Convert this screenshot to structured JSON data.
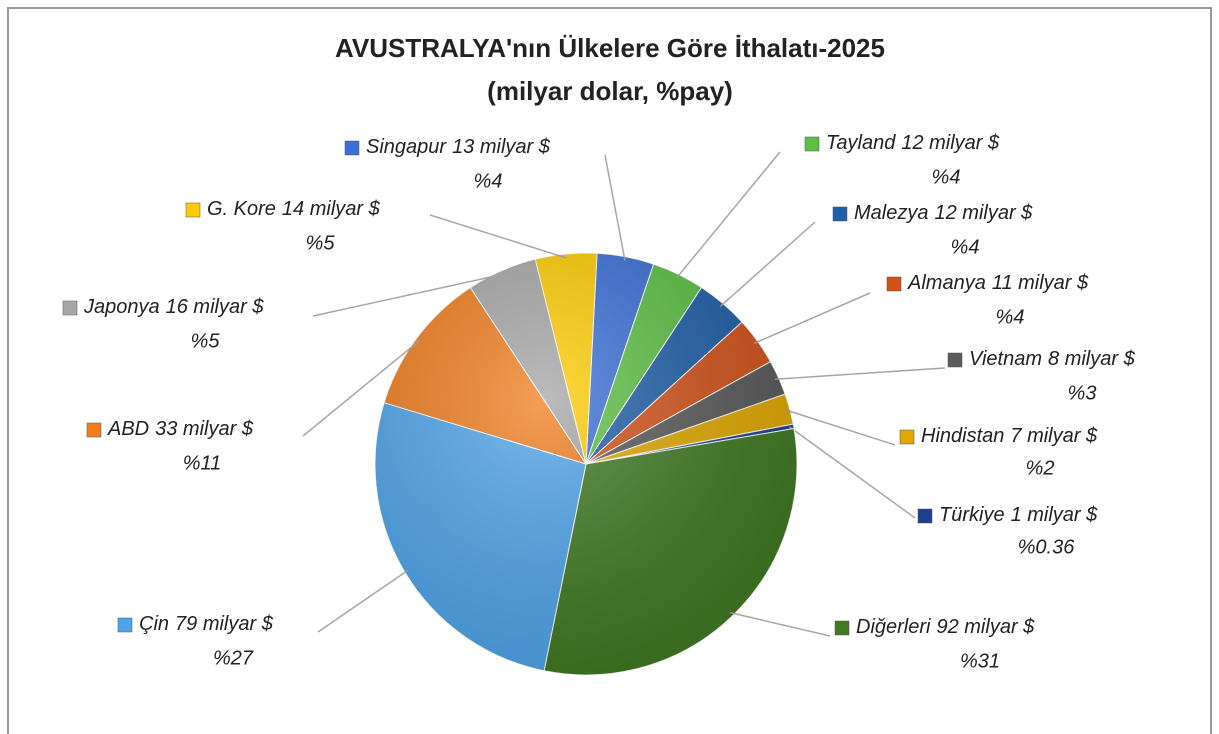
{
  "chart_data": {
    "type": "pie",
    "title": "AVUSTRALYA'nın Ülkelere Göre İthalatı-2025",
    "subtitle": "(milyar dolar, %pay)",
    "categories": [
      "Singapur",
      "Tayland",
      "Malezya",
      "Almanya",
      "Vietnam",
      "Hindistan",
      "Türkiye",
      "Diğerleri",
      "Çin",
      "ABD",
      "Japonya",
      "G. Kore"
    ],
    "values": [
      13,
      12,
      12,
      11,
      8,
      7,
      1,
      92,
      79,
      33,
      16,
      14
    ],
    "value_labels": [
      "13 milyar $",
      "12 milyar $",
      "12 milyar $",
      "11 milyar $",
      "8 milyar $",
      "7 milyar $",
      "1 milyar $",
      "92 milyar $",
      "79 milyar $",
      "33 milyar $",
      "16 milyar $",
      "14 milyar $"
    ],
    "shares": [
      4,
      4,
      4,
      4,
      3,
      2,
      0.36,
      31,
      27,
      11,
      5,
      5
    ],
    "share_labels": [
      "%4",
      "%4",
      "%4",
      "%4",
      "%3",
      "%2",
      "%0.36",
      "%31",
      "%27",
      "%11",
      "%5",
      "%5"
    ],
    "colors": [
      "#3a6fd8",
      "#5cc043",
      "#1f5fa8",
      "#d2521a",
      "#5a5a5a",
      "#e0a800",
      "#1f3f90",
      "#3f7a22",
      "#4ea4ea",
      "#f07d1e",
      "#a6a6a6",
      "#ffcc00"
    ]
  }
}
